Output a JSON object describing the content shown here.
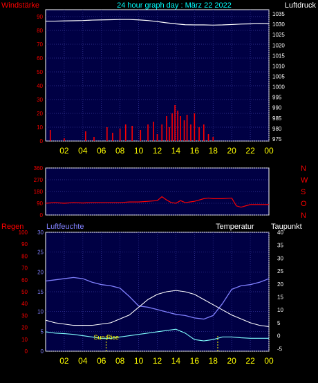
{
  "header": {
    "left_label": "Windstärke",
    "title": "24 hour graph day : März 22 2022",
    "right_label": "Luftdruck"
  },
  "colors": {
    "wind": "#ff0000",
    "pressure": "#ffffff",
    "direction": "#ff0000",
    "humidity": "#8080ff",
    "temperature": "#ffffff",
    "dewpoint": "#80ffff",
    "axis_left": "#ff0000",
    "axis_right": "#ffffff",
    "time_labels": "#ffff00",
    "panel_bg": "#000044",
    "grid": "#3a3aa0",
    "sunrise": "#ffff00"
  },
  "panel3_labels": {
    "rain": "Regen",
    "humidity": "Luftfeuchte",
    "temperature": "Temperatur",
    "dewpoint": "Taupunkt",
    "sun_rise": "Sun Rise"
  },
  "chart_data": [
    {
      "type": "line",
      "panel": "wind-pressure",
      "x_ticks": [
        "02",
        "04",
        "06",
        "08",
        "10",
        "12",
        "14",
        "16",
        "18",
        "20",
        "22",
        "00"
      ],
      "xlim_hours": [
        0,
        24
      ],
      "y_left": {
        "label": "Windstärke",
        "ylim": [
          0,
          95
        ],
        "ticks": [
          0,
          10,
          20,
          30,
          40,
          50,
          60,
          70,
          80,
          90
        ]
      },
      "y_right": {
        "label": "Luftdruck",
        "ylim": [
          974,
          1037
        ],
        "ticks": [
          975,
          980,
          985,
          990,
          995,
          1000,
          1005,
          1010,
          1015,
          1020,
          1025,
          1030,
          1035
        ]
      },
      "series": [
        {
          "name": "Luftdruck",
          "axis": "right",
          "x": [
            0,
            1,
            2,
            3,
            4,
            5,
            6,
            7,
            8,
            9,
            10,
            11,
            12,
            13,
            14,
            15,
            16,
            17,
            18,
            19,
            20,
            21,
            22,
            23,
            24
          ],
          "y": [
            1031.5,
            1031.5,
            1031.6,
            1031.7,
            1031.8,
            1032,
            1032.1,
            1032.2,
            1032.3,
            1032.3,
            1032.1,
            1031.8,
            1031.3,
            1030.7,
            1030.2,
            1029.8,
            1029.7,
            1029.7,
            1029.6,
            1029.7,
            1029.9,
            1030.1,
            1030.2,
            1030.3,
            1030.2
          ]
        },
        {
          "name": "Windstärke",
          "axis": "left",
          "x": [
            0.5,
            2,
            4.3,
            5.2,
            6.6,
            7.2,
            8.0,
            8.6,
            9.3,
            10.2,
            11.0,
            11.6,
            12.0,
            12.5,
            13.0,
            13.3,
            13.6,
            13.9,
            14.2,
            14.5,
            14.9,
            15.2,
            15.6,
            16.0,
            16.5,
            17.0,
            17.5,
            18.0
          ],
          "y": [
            8,
            2,
            7,
            3,
            10,
            6,
            9,
            12,
            11,
            8,
            12,
            14,
            5,
            12,
            18,
            10,
            20,
            26,
            22,
            18,
            15,
            19,
            12,
            20,
            10,
            12,
            5,
            3
          ]
        }
      ]
    },
    {
      "type": "line",
      "panel": "wind-direction",
      "x_ticks": [],
      "xlim_hours": [
        0,
        24
      ],
      "y_left": {
        "ylim": [
          0,
          360
        ],
        "ticks": [
          0,
          90,
          180,
          270,
          360
        ]
      },
      "y_right": {
        "ticks": [
          "N",
          "W",
          "S",
          "O",
          "N"
        ]
      },
      "series": [
        {
          "name": "Windrichtung",
          "x": [
            0,
            1,
            2,
            3,
            4,
            5,
            6,
            7,
            8,
            9,
            10,
            11,
            12,
            12.5,
            13,
            13.5,
            14,
            14.5,
            15,
            15.5,
            16,
            16.5,
            17,
            17.5,
            18,
            19,
            20,
            20.5,
            21,
            22,
            23,
            24
          ],
          "y": [
            90,
            95,
            90,
            95,
            92,
            95,
            95,
            95,
            95,
            100,
            100,
            105,
            110,
            140,
            115,
            95,
            90,
            110,
            95,
            100,
            105,
            115,
            125,
            130,
            125,
            125,
            130,
            70,
            60,
            80,
            80,
            80
          ]
        }
      ]
    },
    {
      "type": "line",
      "panel": "temp-humidity",
      "x_ticks": [
        "02",
        "04",
        "06",
        "08",
        "10",
        "12",
        "14",
        "16",
        "18",
        "20",
        "22",
        "00"
      ],
      "xlim_hours": [
        0,
        24
      ],
      "y_rain": {
        "label": "Regen",
        "ylim": [
          0,
          100
        ],
        "ticks": [
          0,
          10,
          20,
          30,
          40,
          50,
          60,
          70,
          80,
          90,
          100
        ]
      },
      "y_left": {
        "label": "Luftfeuchte",
        "ylim": [
          0,
          30
        ],
        "ticks": [
          0,
          5,
          10,
          15,
          20,
          25,
          30
        ]
      },
      "y_right": {
        "label": "Temperatur",
        "ylim": [
          -6,
          40
        ],
        "ticks": [
          -5,
          0,
          5,
          10,
          15,
          20,
          25,
          30,
          35,
          40
        ]
      },
      "sun_rise_hour": 6.5,
      "sun_set_hour": 18.5,
      "series": [
        {
          "name": "Luftfeuchte",
          "axis": "rain",
          "x": [
            0,
            1,
            2,
            3,
            4,
            5,
            6,
            7,
            8,
            9,
            10,
            11,
            12,
            13,
            14,
            15,
            16,
            17,
            18,
            19,
            20,
            21,
            22,
            23,
            24
          ],
          "y": [
            59,
            60,
            61,
            62,
            61,
            58,
            56,
            55,
            53,
            46,
            38,
            37,
            35,
            33,
            31,
            30,
            28,
            27,
            30,
            40,
            52,
            55,
            56,
            58,
            61
          ]
        },
        {
          "name": "Temperatur",
          "axis": "right",
          "x": [
            0,
            1,
            2,
            3,
            4,
            5,
            6,
            7,
            8,
            9,
            10,
            11,
            12,
            13,
            14,
            15,
            16,
            17,
            18,
            19,
            20,
            21,
            22,
            23,
            24
          ],
          "y": [
            6,
            5,
            4.5,
            4,
            4,
            4,
            4.5,
            5,
            6.5,
            8,
            11,
            14,
            16,
            17,
            17.5,
            17,
            16,
            14,
            12,
            10,
            8,
            6.5,
            5,
            4,
            3.5
          ]
        },
        {
          "name": "Taupunkt",
          "axis": "right",
          "x": [
            0,
            1,
            2,
            3,
            4,
            5,
            6,
            7,
            8,
            9,
            10,
            11,
            12,
            13,
            14,
            15,
            16,
            17,
            18,
            19,
            20,
            21,
            22,
            23,
            24
          ],
          "y": [
            1.5,
            1,
            0.8,
            0.5,
            0,
            -0.5,
            -1,
            -1,
            -0.5,
            0,
            0.5,
            1,
            1.5,
            2,
            2.5,
            1,
            -1.5,
            -2,
            -1.5,
            -0.5,
            -0.5,
            -0.8,
            -1,
            -1,
            -1
          ]
        }
      ]
    }
  ]
}
